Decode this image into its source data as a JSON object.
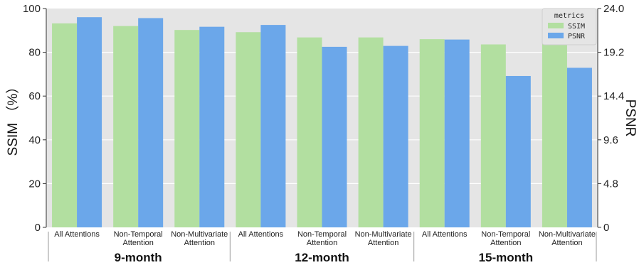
{
  "chart_data": {
    "type": "bar",
    "groups": [
      "9-month",
      "12-month",
      "15-month"
    ],
    "categories": [
      "All Attentions",
      "Non-Temporal Attention",
      "Non-Multivariate Attention",
      "All Attentions",
      "Non-Temporal Attention",
      "Non-Multivariate Attention",
      "All Attentions",
      "Non-Temporal Attention",
      "Non-Multivariate Attention"
    ],
    "category_lines": [
      [
        "All Attentions"
      ],
      [
        "Non-Temporal",
        "Attention"
      ],
      [
        "Non-Multivariate",
        "Attention"
      ],
      [
        "All Attentions"
      ],
      [
        "Non-Temporal",
        "Attention"
      ],
      [
        "Non-Multivariate",
        "Attention"
      ],
      [
        "All Attentions"
      ],
      [
        "Non-Temporal",
        "Attention"
      ],
      [
        "Non-Multivariate",
        "Attention"
      ]
    ],
    "series": [
      {
        "name": "SSIM",
        "axis": "left",
        "color": "#b2dfa0",
        "values": [
          93.2,
          92.0,
          90.2,
          89.2,
          86.8,
          86.8,
          86.0,
          83.6,
          85.0
        ]
      },
      {
        "name": "PSNR",
        "axis": "right",
        "color": "#6ba7ea",
        "values": [
          23.05,
          22.95,
          22.0,
          22.2,
          19.8,
          19.9,
          20.6,
          16.6,
          17.5
        ]
      }
    ],
    "ylabel": "SSIM （%）",
    "ylabel_right": "PSNR",
    "ylim": [
      0,
      100
    ],
    "ylim_right": [
      0,
      24
    ],
    "yticks": [
      "0",
      "20",
      "40",
      "60",
      "80",
      "100"
    ],
    "yticks_right": [
      "0",
      "4.8",
      "9.6",
      "14.4",
      "19.2",
      "24.0"
    ],
    "legend": {
      "title": "metrics",
      "position": "top-right",
      "entries": [
        "SSIM",
        "PSNR"
      ]
    },
    "grid": true,
    "background": "#e5e5e5"
  }
}
